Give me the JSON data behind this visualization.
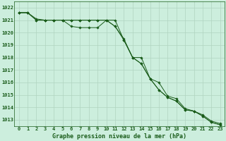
{
  "x": [
    0,
    1,
    2,
    3,
    4,
    5,
    6,
    7,
    8,
    9,
    10,
    11,
    12,
    13,
    14,
    15,
    16,
    17,
    18,
    19,
    20,
    21,
    22,
    23
  ],
  "series1": [
    1021.6,
    1021.6,
    1021.1,
    1021.0,
    1021.0,
    1021.0,
    1021.0,
    1021.0,
    1021.0,
    1021.0,
    1021.0,
    1020.5,
    1019.5,
    1018.0,
    1017.5,
    1016.3,
    1016.0,
    1014.9,
    1014.7,
    1013.9,
    1013.7,
    1013.4,
    1012.9,
    1012.7
  ],
  "series2": [
    1021.6,
    1021.6,
    1021.0,
    1021.0,
    1021.0,
    1021.0,
    1020.5,
    1020.4,
    1020.4,
    1020.4,
    1021.0,
    1020.5,
    1019.4,
    1018.0,
    1017.5,
    1016.3,
    1015.4,
    1014.8,
    1014.5,
    1013.8,
    1013.7,
    1013.3,
    1012.8,
    1012.6
  ],
  "series3": [
    1021.6,
    1021.6,
    1021.0,
    1021.0,
    1021.0,
    1021.0,
    1021.0,
    1021.0,
    1021.0,
    1021.0,
    1021.0,
    1021.0,
    1019.4,
    1018.0,
    1018.0,
    1016.3,
    1015.4,
    1014.8,
    1014.5,
    1013.8,
    1013.7,
    1013.3,
    1012.8,
    1012.6
  ],
  "ylim": [
    1012.5,
    1022.5
  ],
  "yticks": [
    1013,
    1014,
    1015,
    1016,
    1017,
    1018,
    1019,
    1020,
    1021,
    1022
  ],
  "xticks": [
    0,
    1,
    2,
    3,
    4,
    5,
    6,
    7,
    8,
    9,
    10,
    11,
    12,
    13,
    14,
    15,
    16,
    17,
    18,
    19,
    20,
    21,
    22,
    23
  ],
  "xlabel": "Graphe pression niveau de la mer (hPa)",
  "line_color": "#1a5c1a",
  "bg_color": "#cceedd",
  "grid_color": "#b0d4c0",
  "axis_bg": "#cceedd",
  "marker": "D",
  "markersize": 1.8,
  "tick_fontsize": 5.0,
  "xlabel_fontsize": 6.0
}
